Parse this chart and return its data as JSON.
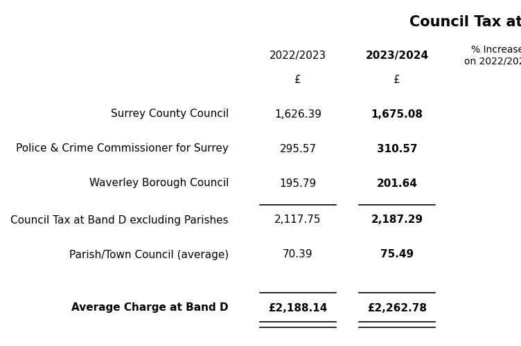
{
  "title": "Council Tax at Band D",
  "rows": [
    {
      "label": "Surrey County Council",
      "val2223": "1,626.39",
      "val2324": "1,675.08",
      "bold_label": false,
      "bold2324": true,
      "line_above": false,
      "double_below": false
    },
    {
      "label": "Police & Crime Commissioner for Surrey",
      "val2223": "295.57",
      "val2324": "310.57",
      "bold_label": false,
      "bold2324": true,
      "line_above": false,
      "double_below": false
    },
    {
      "label": "Waverley Borough Council",
      "val2223": "195.79",
      "val2324": "201.64",
      "bold_label": false,
      "bold2324": true,
      "line_above": false,
      "double_below": false
    },
    {
      "label": "Council Tax at Band D excluding Parishes",
      "val2223": "2,117.75",
      "val2324": "2,187.29",
      "bold_label": false,
      "bold2324": true,
      "line_above": true,
      "double_below": false
    },
    {
      "label": "Parish/Town Council (average)",
      "val2223": "70.39",
      "val2324": "75.49",
      "bold_label": false,
      "bold2324": true,
      "line_above": false,
      "double_below": false
    },
    {
      "label": "Average Charge at Band D",
      "val2223": "£2,188.14",
      "val2324": "£2,262.78",
      "bold_label": true,
      "bold2324": true,
      "line_above": true,
      "double_below": true
    }
  ],
  "bg_color": "#ffffff",
  "text_color": "#000000",
  "title_fontsize": 15,
  "header_fontsize": 11,
  "body_fontsize": 11
}
